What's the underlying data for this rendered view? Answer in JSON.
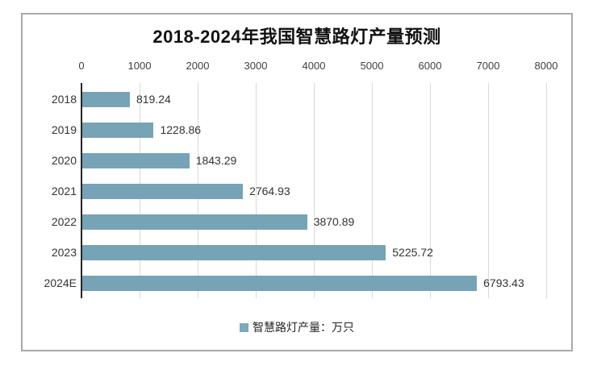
{
  "chart_data": {
    "type": "bar",
    "orientation": "horizontal",
    "title": "2018-2024年我国智慧路灯产量预测",
    "categories": [
      "2018",
      "2019",
      "2020",
      "2021",
      "2022",
      "2023",
      "2024E"
    ],
    "values": [
      819.24,
      1228.86,
      1843.29,
      2764.93,
      3870.89,
      5225.72,
      6793.43
    ],
    "series_name": "智慧路灯产量：万只",
    "xlim": [
      0,
      8000
    ],
    "x_ticks": [
      0,
      1000,
      2000,
      3000,
      4000,
      5000,
      6000,
      7000,
      8000
    ],
    "grid": true,
    "legend_position": "bottom",
    "axis_position": "top",
    "bar_color": "#76a3b5",
    "legend_color": "#7ca9bc"
  }
}
